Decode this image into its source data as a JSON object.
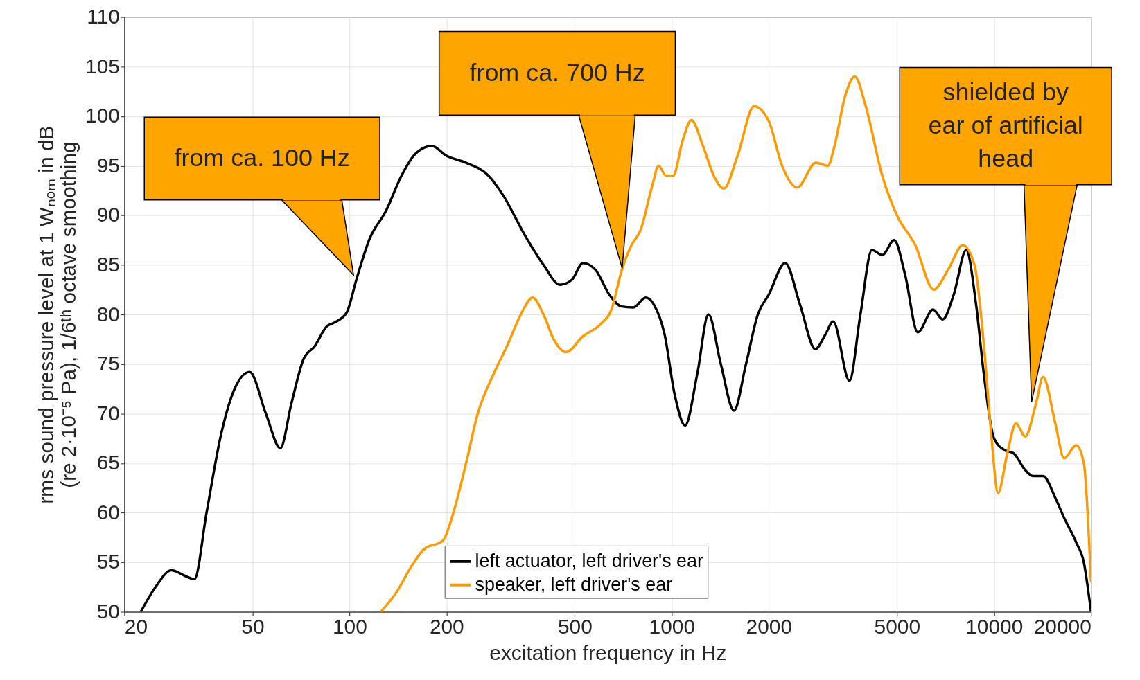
{
  "chart_data": {
    "type": "line",
    "xlabel": "excitation frequency in Hz",
    "ylabel": "rms sound pressure level at 1 Wₙₒₘ in dB\n(re 2·10⁻⁵ Pa), 1/6ᵗʰ octave smoothing",
    "log": "x",
    "xlim": [
      20,
      20000
    ],
    "xticks": [
      20,
      50,
      100,
      200,
      500,
      1000,
      2000,
      5000,
      10000,
      20000
    ],
    "ylim": [
      50,
      110
    ],
    "yticks": [
      50,
      55,
      60,
      65,
      70,
      75,
      80,
      85,
      90,
      95,
      100,
      105,
      110
    ],
    "grid": true,
    "legend": "bottom",
    "line_style": "solid",
    "marker": "none",
    "series": [
      {
        "name": "left actuator, left driver's ear",
        "color": "#000000",
        "x": [
          22.5,
          25,
          28,
          31,
          33,
          36,
          40,
          44,
          49,
          55,
          61,
          66,
          72,
          78,
          85,
          90,
          98,
          105,
          115,
          130,
          145,
          160,
          180,
          200,
          230,
          270,
          300,
          350,
          400,
          450,
          490,
          530,
          580,
          640,
          700,
          760,
          830,
          880,
          950,
          1020,
          1100,
          1200,
          1300,
          1420,
          1560,
          1700,
          1850,
          2000,
          2250,
          2500,
          2790,
          3000,
          3170,
          3560,
          3850,
          4180,
          4500,
          4900,
          5300,
          5800,
          6470,
          6930,
          7500,
          8200,
          8800,
          9300,
          10000,
          10800,
          11500,
          12500,
          13200,
          14200,
          15500,
          16500,
          18000,
          19000,
          20000
        ],
        "values": [
          50,
          52.5,
          54.2,
          53.6,
          53.3,
          60,
          68,
          72.5,
          74.2,
          70,
          66.5,
          71,
          75.5,
          76.8,
          78.8,
          79.2,
          80.2,
          83.5,
          87.5,
          90.5,
          94,
          96.2,
          97,
          96,
          95.3,
          94,
          92,
          88,
          85,
          83,
          83.5,
          85.2,
          84.5,
          82,
          80.8,
          80.7,
          81.7,
          81,
          78,
          72,
          68.8,
          74,
          80,
          75,
          70.3,
          75,
          80,
          82,
          85.2,
          81,
          76.5,
          78,
          79.3,
          73.3,
          80,
          86.5,
          86,
          87.5,
          84,
          78.2,
          80.5,
          79.5,
          82,
          86.5,
          81,
          74,
          67.5,
          66.3,
          66,
          64.3,
          63.7,
          63.7,
          61.5,
          59.5,
          57,
          55,
          50
        ]
      },
      {
        "name": "speaker, left driver's ear",
        "color": "#ff9900",
        "x": [
          125,
          140,
          155,
          170,
          195,
          210,
          230,
          250,
          280,
          310,
          340,
          370,
          400,
          430,
          470,
          530,
          600,
          650,
          700,
          750,
          800,
          870,
          910,
          960,
          1010,
          1080,
          1150,
          1250,
          1350,
          1450,
          1600,
          1800,
          2000,
          2200,
          2450,
          2800,
          3050,
          3200,
          3450,
          3700,
          4000,
          4500,
          5000,
          5700,
          6500,
          7200,
          8000,
          8700,
          9300,
          9800,
          10300,
          11000,
          11700,
          12500,
          13500,
          14200,
          15500,
          16500,
          18000,
          19000,
          20000
        ],
        "values": [
          50,
          52,
          54.5,
          56.3,
          57.2,
          60,
          65,
          70,
          74,
          77,
          80,
          81.7,
          80,
          77.5,
          76.2,
          77.8,
          79,
          80.5,
          84.5,
          87,
          88.5,
          93,
          95,
          94,
          94,
          97.5,
          99.6,
          97,
          94,
          92.7,
          96,
          101,
          99.5,
          95,
          92.8,
          95.3,
          95,
          97,
          102,
          104,
          101,
          94,
          90,
          87,
          82.5,
          84.5,
          87,
          85,
          77,
          68,
          62,
          66,
          69,
          67.7,
          71,
          73.7,
          69,
          65.5,
          66.8,
          65,
          53
        ]
      }
    ],
    "annotations": [
      "from ca. 100 Hz",
      "from ca. 700 Hz",
      "shielded by\near of artificial\nhead"
    ]
  }
}
